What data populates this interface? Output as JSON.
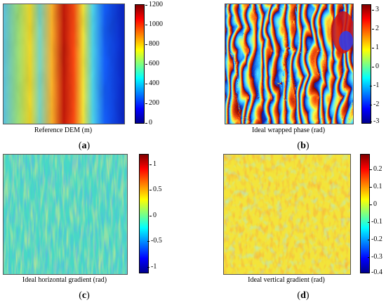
{
  "panels": [
    {
      "letter": "a",
      "caption": "Reference DEM (m)",
      "colorbar_ticks": [
        "1200",
        "1000",
        "800",
        "600",
        "400",
        "200",
        "0"
      ]
    },
    {
      "letter": "b",
      "caption": "Ideal wrapped phase (rad)",
      "colorbar_ticks": [
        "3",
        "2",
        "1",
        "0",
        "-1",
        "-2",
        "-3"
      ]
    },
    {
      "letter": "c",
      "caption": "Ideal horizontal gradient (rad)",
      "colorbar_ticks": [
        "1",
        "0.5",
        "0",
        "-0.5",
        "-1"
      ]
    },
    {
      "letter": "d",
      "caption": "Ideal vertical gradient (rad)",
      "colorbar_ticks": [
        "0.2",
        "0.1",
        "0",
        "-0.1",
        "-0.2",
        "-0.3",
        "-0.4"
      ]
    }
  ],
  "colormap": "jet"
}
